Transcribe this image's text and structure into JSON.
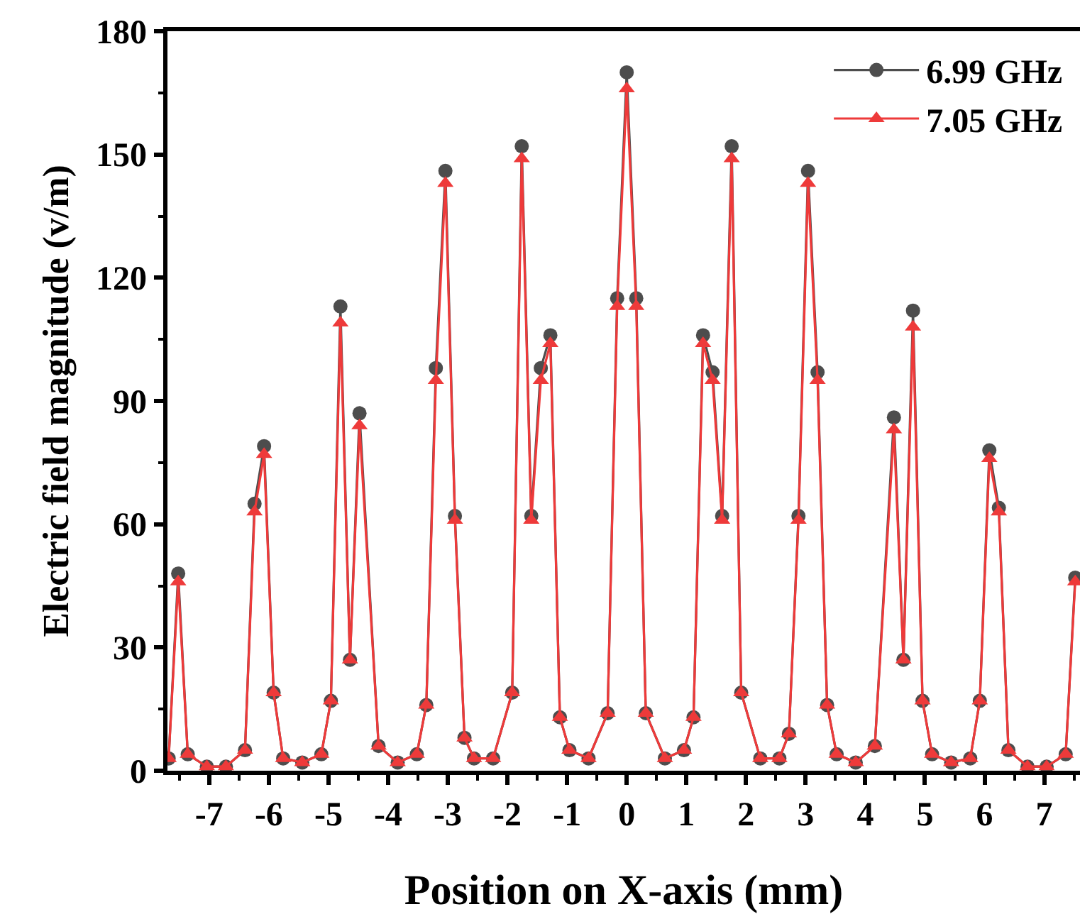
{
  "chart_data": {
    "type": "line",
    "xlabel": "Position on X-axis (mm)",
    "ylabel": "Electric field magnitude (v/m)",
    "x": [
      -7.68,
      -7.52,
      -7.36,
      -7.04,
      -6.72,
      -6.4,
      -6.24,
      -6.08,
      -5.92,
      -5.76,
      -5.44,
      -5.12,
      -4.96,
      -4.8,
      -4.64,
      -4.48,
      -4.16,
      -3.84,
      -3.52,
      -3.36,
      -3.2,
      -3.04,
      -2.88,
      -2.72,
      -2.56,
      -2.24,
      -1.92,
      -1.76,
      -1.6,
      -1.44,
      -1.28,
      -1.12,
      -0.96,
      -0.64,
      -0.32,
      -0.16,
      0,
      0.16,
      0.32,
      0.64,
      0.96,
      1.12,
      1.28,
      1.44,
      1.6,
      1.76,
      1.92,
      2.24,
      2.56,
      2.72,
      2.88,
      3.04,
      3.2,
      3.36,
      3.52,
      3.84,
      4.16,
      4.48,
      4.64,
      4.8,
      4.96,
      5.12,
      5.44,
      5.76,
      5.92,
      6.08,
      6.24,
      6.4,
      6.72,
      7.04,
      7.36,
      7.52
    ],
    "series": [
      {
        "name": "6.99 GHz",
        "color": "#4d4d4d",
        "marker": "circle",
        "values": [
          3,
          48,
          4,
          1,
          1,
          5,
          65,
          79,
          19,
          3,
          2,
          4,
          17,
          113,
          27,
          87,
          6,
          2,
          4,
          16,
          98,
          146,
          62,
          8,
          3,
          3,
          19,
          152,
          62,
          98,
          106,
          13,
          5,
          3,
          14,
          115,
          170,
          115,
          14,
          3,
          5,
          13,
          106,
          97,
          62,
          152,
          19,
          3,
          3,
          9,
          62,
          146,
          97,
          16,
          4,
          2,
          6,
          86,
          27,
          112,
          17,
          4,
          2,
          3,
          17,
          78,
          64,
          5,
          1,
          1,
          4,
          47
        ]
      },
      {
        "name": "7.05 GHz",
        "color": "#ee3a3a",
        "marker": "triangle",
        "values": [
          3,
          46,
          4,
          1,
          1,
          5,
          63,
          77,
          19,
          3,
          2,
          4,
          17,
          109,
          27,
          84,
          6,
          2,
          4,
          16,
          95,
          143,
          61,
          8,
          3,
          3,
          19,
          149,
          61,
          95,
          104,
          13,
          5,
          3,
          14,
          113,
          166,
          113,
          14,
          3,
          5,
          13,
          104,
          95,
          61,
          149,
          19,
          3,
          3,
          9,
          61,
          143,
          95,
          16,
          4,
          2,
          6,
          83,
          27,
          108,
          17,
          4,
          2,
          3,
          17,
          76,
          63,
          5,
          1,
          1,
          4,
          46
        ]
      }
    ],
    "xlim": [
      -7.7,
      7.6
    ],
    "xticks": [
      -7,
      -6,
      -5,
      -4,
      -3,
      -2,
      -1,
      0,
      1,
      2,
      3,
      4,
      5,
      6,
      7
    ],
    "ylim": [
      0,
      180
    ],
    "yticks": [
      0,
      30,
      60,
      90,
      120,
      150,
      180
    ],
    "grid": false,
    "legend": "top right",
    "line_style": "solid"
  }
}
